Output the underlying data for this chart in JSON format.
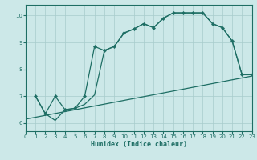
{
  "xlabel": "Humidex (Indice chaleur)",
  "bg_color": "#cce8e8",
  "line_color": "#1e6e64",
  "grid_color": "#a8cccc",
  "xlim": [
    0,
    23
  ],
  "ylim": [
    5.7,
    10.4
  ],
  "xticks": [
    0,
    1,
    2,
    3,
    4,
    5,
    6,
    7,
    8,
    9,
    10,
    11,
    12,
    13,
    14,
    15,
    16,
    17,
    18,
    19,
    20,
    21,
    22,
    23
  ],
  "yticks": [
    6,
    7,
    8,
    9,
    10
  ],
  "line1_x": [
    1,
    2,
    3,
    4,
    5,
    6,
    7,
    8,
    9,
    10,
    11,
    12,
    13,
    14,
    15,
    16,
    17,
    18,
    19,
    20,
    21,
    22,
    23
  ],
  "line1_y": [
    7.0,
    6.35,
    7.0,
    6.5,
    6.55,
    7.0,
    8.85,
    8.7,
    8.85,
    9.35,
    9.5,
    9.7,
    9.55,
    9.9,
    10.1,
    10.1,
    10.1,
    10.1,
    9.7,
    9.55,
    9.05,
    7.8,
    7.8
  ],
  "line2_x": [
    1,
    2,
    3,
    4,
    5,
    6,
    7,
    8,
    9,
    10,
    11,
    12,
    13,
    14,
    15,
    16,
    17,
    18,
    19,
    20,
    21,
    22,
    23
  ],
  "line2_y": [
    7.0,
    6.35,
    6.1,
    6.5,
    6.55,
    6.7,
    7.05,
    8.7,
    8.85,
    9.35,
    9.5,
    9.7,
    9.55,
    9.9,
    10.1,
    10.1,
    10.1,
    10.1,
    9.7,
    9.55,
    9.05,
    7.8,
    7.8
  ],
  "line3_x": [
    0,
    23
  ],
  "line3_y": [
    6.15,
    7.75
  ]
}
